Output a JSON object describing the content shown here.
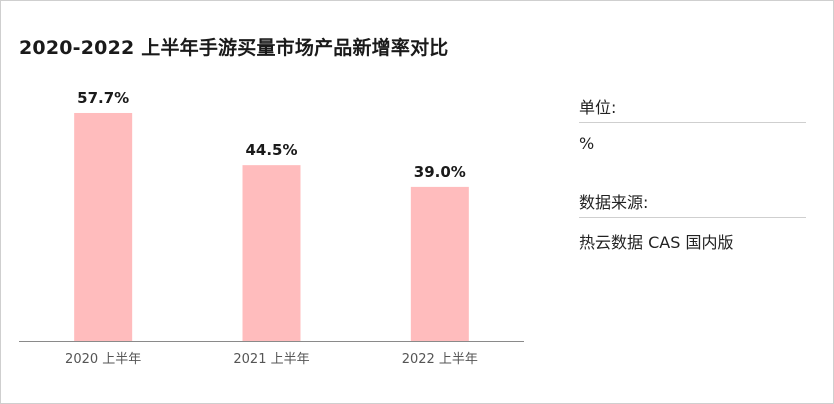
{
  "title": "2020-2022 上半年手游买量市场产品新增率对比",
  "sidebar": {
    "unit_label": "单位:",
    "unit_value": "%",
    "source_label": "数据来源:",
    "source_value": "热云数据 CAS 国内版"
  },
  "colors": {
    "bar": "#ffbcbd",
    "axis": "#8a8a8a"
  },
  "chart_data": {
    "type": "bar",
    "categories": [
      "2020 上半年",
      "2021 上半年",
      "2022 上半年"
    ],
    "values": [
      57.7,
      44.5,
      39.0
    ],
    "value_labels": [
      "57.7%",
      "44.5%",
      "39.0%"
    ],
    "ylim": [
      0,
      62
    ],
    "grid": false,
    "legend": "none"
  }
}
